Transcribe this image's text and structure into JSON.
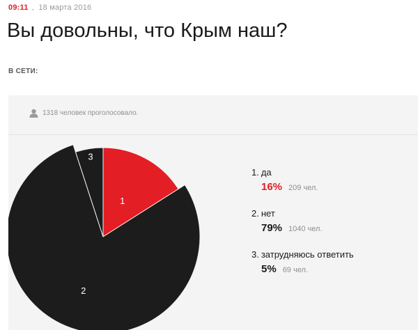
{
  "meta": {
    "time": "09:11",
    "separator": ",",
    "date": "18 марта 2016"
  },
  "headline": "Вы довольны, что Крым наш?",
  "section_label": "В СЕТИ:",
  "poll": {
    "voters_text": "1318 человек проголосовало.",
    "voter_icon": "user-icon",
    "options": [
      {
        "number": "1.",
        "label": "да",
        "percent": "16%",
        "count": "209 чел."
      },
      {
        "number": "2.",
        "label": "нет",
        "percent": "79%",
        "count": "1040 чел."
      },
      {
        "number": "3.",
        "label": "затрудняюсь ответить",
        "percent": "5%",
        "count": "69 чел."
      }
    ]
  },
  "chart_data": {
    "type": "pie",
    "categories": [
      "да",
      "нет",
      "затрудняюсь ответить"
    ],
    "values": [
      16,
      79,
      5
    ],
    "counts": [
      209,
      1040,
      69
    ],
    "slice_labels": [
      "1",
      "2",
      "3"
    ],
    "colors": [
      "#e31e24",
      "#1c1c1c",
      "#1c1c1c"
    ],
    "highlighted_slice": 0,
    "start": "12 o'clock, clockwise"
  },
  "colors": {
    "accent": "#e31e24",
    "dark": "#1c1c1c",
    "panel": "#f4f4f4"
  }
}
